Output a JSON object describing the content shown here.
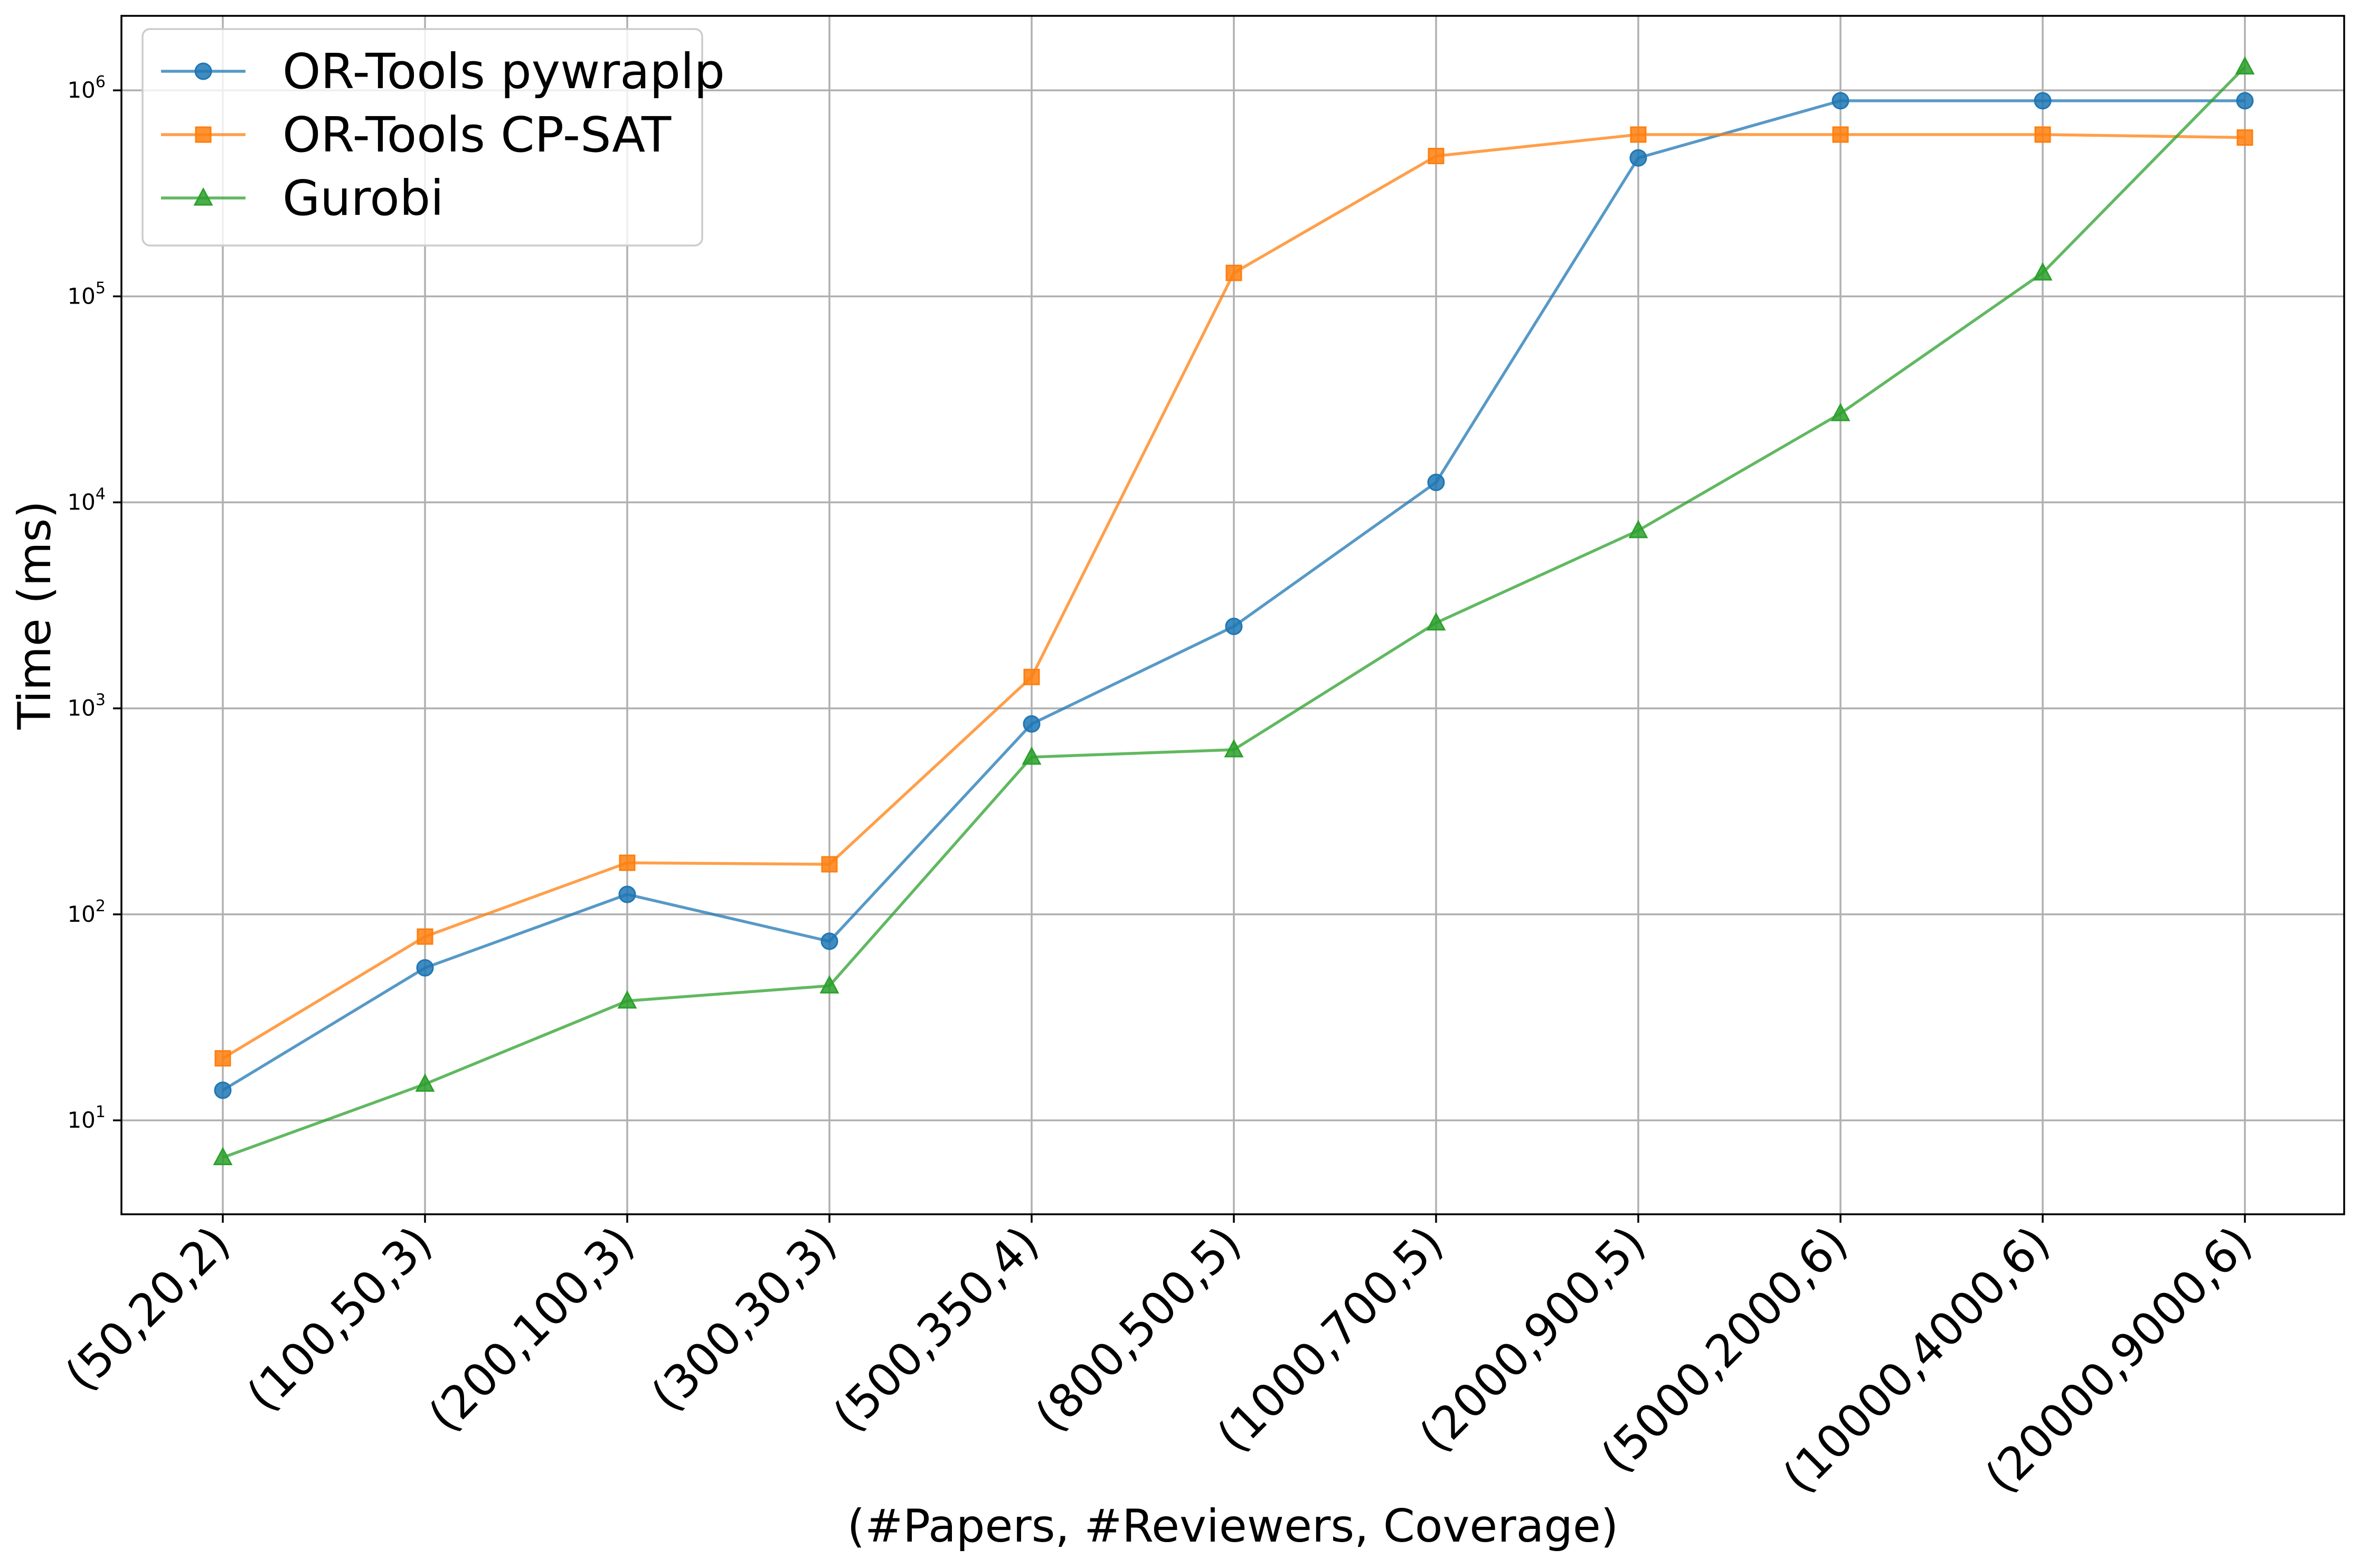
{
  "chart_data": {
    "type": "line",
    "xlabel": "(#Papers, #Reviewers, Coverage)",
    "ylabel": "Time (ms)",
    "yscale": "log",
    "ylim": [
      3.5,
      2300000
    ],
    "grid": true,
    "legend_position": "top-left",
    "categories": [
      "(50,20,2)",
      "(100,50,3)",
      "(200,100,3)",
      "(300,30,3)",
      "(500,350,4)",
      "(800,500,5)",
      "(1000,700,5)",
      "(2000,900,5)",
      "(5000,2000,6)",
      "(10000,4000,6)",
      "(20000,9000,6)"
    ],
    "y_ticks": [
      {
        "value": 10,
        "mantissa": "10",
        "exponent": "1"
      },
      {
        "value": 100,
        "mantissa": "10",
        "exponent": "2"
      },
      {
        "value": 1000,
        "mantissa": "10",
        "exponent": "3"
      },
      {
        "value": 10000,
        "mantissa": "10",
        "exponent": "4"
      },
      {
        "value": 100000,
        "mantissa": "10",
        "exponent": "5"
      },
      {
        "value": 1000000,
        "mantissa": "10",
        "exponent": "6"
      }
    ],
    "series": [
      {
        "name": "OR-Tools pywraplp",
        "color": "#1f77b4",
        "marker": "circle",
        "values": [
          14,
          55,
          125,
          74,
          840,
          2500,
          12500,
          470000,
          890000,
          890000,
          890000
        ]
      },
      {
        "name": "OR-Tools CP-SAT",
        "color": "#ff7f0e",
        "marker": "square",
        "values": [
          20,
          78,
          178,
          175,
          1420,
          130000,
          480000,
          610000,
          610000,
          610000,
          590000
        ]
      },
      {
        "name": "Gurobi",
        "color": "#2ca02c",
        "marker": "triangle",
        "values": [
          6.6,
          15,
          38,
          45,
          580,
          630,
          2600,
          7300,
          27000,
          130000,
          1300000
        ]
      }
    ]
  }
}
